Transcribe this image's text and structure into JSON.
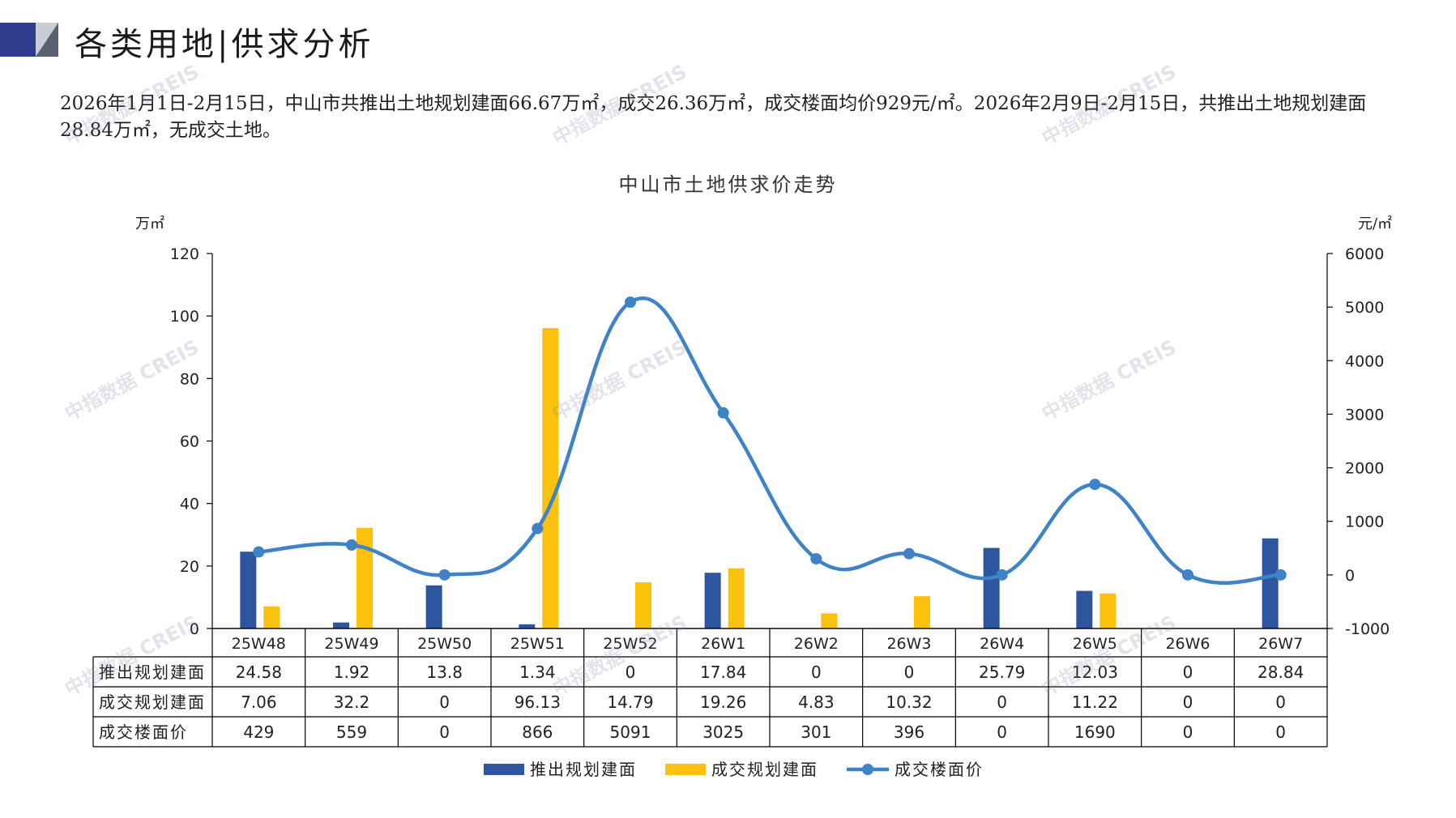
{
  "header": {
    "title": "各类用地|供求分析"
  },
  "summary": "2026年1月1日-2月15日，中山市共推出土地规划建面66.67万㎡，成交26.36万㎡，成交楼面均价929元/㎡。2026年2月9日-2月15日，共推出土地规划建面28.84万㎡，无成交土地。",
  "watermark_text": "中指数据 CREIS",
  "colors": {
    "supply": "#2e56a0",
    "deal": "#fbc10b",
    "price": "#3e82c8",
    "grid": "#000000"
  },
  "chart_data": {
    "type": "bar",
    "title": "中山市土地供求价走势",
    "y_left_unit": "万㎡",
    "y_right_unit": "元/㎡",
    "y_left_ticks": [
      "120",
      "100",
      "80",
      "60",
      "40",
      "20",
      "0"
    ],
    "y_right_ticks": [
      "6000",
      "5000",
      "4000",
      "3000",
      "2000",
      "1000",
      "0",
      "-1000"
    ],
    "ylim_left": [
      0,
      120
    ],
    "ylim_right": [
      -1000,
      6000
    ],
    "categories": [
      "25W48",
      "25W49",
      "25W50",
      "25W51",
      "25W52",
      "26W1",
      "26W2",
      "26W3",
      "26W4",
      "26W5",
      "26W6",
      "26W7"
    ],
    "series": [
      {
        "name": "推出规划建面",
        "type": "bar",
        "axis": "left",
        "values": [
          24.58,
          1.92,
          13.8,
          1.34,
          0,
          17.84,
          0,
          0,
          25.79,
          12.03,
          0,
          28.84
        ],
        "labels": [
          "24.58",
          "1.92",
          "13.8",
          "1.34",
          "0",
          "17.84",
          "0",
          "0",
          "25.79",
          "12.03",
          "0",
          "28.84"
        ]
      },
      {
        "name": "成交规划建面",
        "type": "bar",
        "axis": "left",
        "values": [
          7.06,
          32.2,
          0,
          96.13,
          14.79,
          19.26,
          4.83,
          10.32,
          0,
          11.22,
          0,
          0
        ],
        "labels": [
          "7.06",
          "32.2",
          "0",
          "96.13",
          "14.79",
          "19.26",
          "4.83",
          "10.32",
          "0",
          "11.22",
          "0",
          "0"
        ]
      },
      {
        "name": "成交楼面价",
        "type": "line",
        "axis": "right",
        "values": [
          429,
          559,
          0,
          866,
          5091,
          3025,
          301,
          396,
          0,
          1690,
          0,
          0
        ],
        "labels": [
          "429",
          "559",
          "0",
          "866",
          "5091",
          "3025",
          "301",
          "396",
          "0",
          "1690",
          "0",
          "0"
        ]
      }
    ],
    "legend_position": "bottom",
    "grid": false
  }
}
